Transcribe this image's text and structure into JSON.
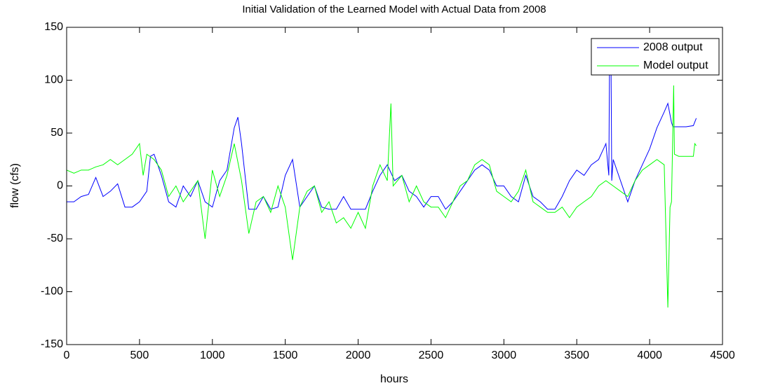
{
  "chart_data": {
    "type": "line",
    "title": "Initial Validation of the Learned Model with Actual Data from 2008",
    "xlabel": "hours",
    "ylabel": "flow (cfs)",
    "xlim": [
      0,
      4500
    ],
    "ylim": [
      -150,
      150
    ],
    "xticks": [
      0,
      500,
      1000,
      1500,
      2000,
      2500,
      3000,
      3500,
      4000,
      4500
    ],
    "yticks": [
      -150,
      -100,
      -50,
      0,
      50,
      100,
      150
    ],
    "legend": "northeast",
    "series": [
      {
        "name": "2008 output",
        "color": "#0000ff",
        "x": [
          0,
          50,
          100,
          150,
          200,
          250,
          300,
          350,
          400,
          450,
          500,
          550,
          575,
          600,
          650,
          700,
          750,
          800,
          850,
          900,
          950,
          1000,
          1050,
          1100,
          1150,
          1175,
          1200,
          1250,
          1300,
          1350,
          1400,
          1450,
          1500,
          1550,
          1600,
          1650,
          1700,
          1750,
          1800,
          1850,
          1900,
          1950,
          2000,
          2050,
          2100,
          2150,
          2200,
          2250,
          2300,
          2350,
          2400,
          2450,
          2500,
          2550,
          2600,
          2650,
          2700,
          2750,
          2800,
          2850,
          2900,
          2950,
          3000,
          3050,
          3100,
          3150,
          3200,
          3250,
          3300,
          3350,
          3400,
          3450,
          3500,
          3550,
          3600,
          3650,
          3700,
          3720,
          3725,
          3735,
          3740,
          3750,
          3800,
          3850,
          3900,
          3950,
          4000,
          4050,
          4100,
          4125,
          4150,
          4160,
          4200,
          4250,
          4300,
          4320
        ],
        "values": [
          -15,
          -15,
          -10,
          -8,
          8,
          -10,
          -5,
          2,
          -20,
          -20,
          -15,
          -5,
          28,
          30,
          10,
          -15,
          -20,
          0,
          -10,
          5,
          -15,
          -20,
          5,
          15,
          55,
          65,
          40,
          -22,
          -22,
          -10,
          -22,
          -20,
          10,
          25,
          -20,
          -10,
          0,
          -20,
          -22,
          -22,
          -10,
          -22,
          -22,
          -22,
          -5,
          10,
          20,
          5,
          10,
          -5,
          -10,
          -20,
          -10,
          -10,
          -22,
          -15,
          -5,
          5,
          15,
          20,
          15,
          0,
          0,
          -10,
          -15,
          10,
          -10,
          -15,
          -22,
          -22,
          -10,
          5,
          15,
          10,
          20,
          25,
          40,
          10,
          120,
          120,
          5,
          25,
          5,
          -15,
          5,
          20,
          35,
          55,
          70,
          78,
          60,
          56,
          56,
          56,
          57,
          64
        ]
      },
      {
        "name": "Model output",
        "color": "#00ff00",
        "x": [
          0,
          50,
          100,
          150,
          200,
          250,
          300,
          350,
          400,
          450,
          500,
          525,
          550,
          600,
          650,
          700,
          750,
          800,
          850,
          900,
          950,
          1000,
          1050,
          1100,
          1150,
          1200,
          1250,
          1300,
          1350,
          1400,
          1450,
          1500,
          1550,
          1600,
          1650,
          1700,
          1750,
          1800,
          1850,
          1900,
          1950,
          2000,
          2050,
          2100,
          2150,
          2200,
          2225,
          2240,
          2300,
          2350,
          2400,
          2450,
          2500,
          2550,
          2600,
          2650,
          2700,
          2750,
          2800,
          2850,
          2900,
          2950,
          3000,
          3050,
          3100,
          3150,
          3200,
          3250,
          3300,
          3350,
          3400,
          3450,
          3500,
          3550,
          3600,
          3650,
          3700,
          3750,
          3800,
          3850,
          3900,
          3950,
          4000,
          4050,
          4100,
          4125,
          4140,
          4150,
          4165,
          4170,
          4200,
          4250,
          4300,
          4310,
          4320
        ],
        "values": [
          15,
          12,
          15,
          15,
          18,
          20,
          25,
          20,
          25,
          30,
          40,
          10,
          30,
          25,
          15,
          -10,
          0,
          -15,
          -5,
          5,
          -50,
          15,
          -10,
          10,
          40,
          5,
          -45,
          -15,
          -10,
          -25,
          0,
          -20,
          -70,
          -20,
          -5,
          0,
          -25,
          -15,
          -35,
          -30,
          -40,
          -25,
          -40,
          0,
          20,
          5,
          78,
          0,
          10,
          -15,
          0,
          -15,
          -20,
          -20,
          -30,
          -15,
          0,
          5,
          20,
          25,
          20,
          -5,
          -10,
          -15,
          -5,
          15,
          -15,
          -20,
          -25,
          -25,
          -20,
          -30,
          -20,
          -15,
          -10,
          0,
          5,
          0,
          -5,
          -10,
          5,
          15,
          20,
          25,
          20,
          -115,
          -20,
          -15,
          95,
          30,
          28,
          28,
          28,
          40,
          38
        ]
      }
    ]
  }
}
